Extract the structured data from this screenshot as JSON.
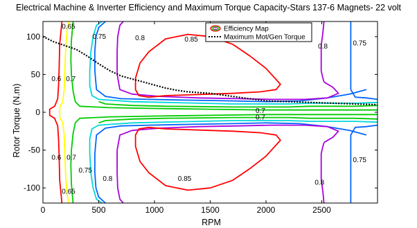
{
  "chart_data": {
    "type": "line",
    "title": "Electrical Machine  & Inverter Efficiency and Maximum Torque Capacity-Stars 137-6 Magnets- 22 volt",
    "xlabel": "RPM",
    "ylabel": "Rotor Torque (N.m)",
    "xlim": [
      0,
      3000
    ],
    "ylim": [
      -120,
      120
    ],
    "xticks": [
      0,
      500,
      1000,
      1500,
      2000,
      2500
    ],
    "yticks": [
      -100,
      -50,
      0,
      50,
      100
    ],
    "grid": false,
    "legend_position": "top-right",
    "legend": [
      {
        "label": "Efficiency Map",
        "marker": "contour-loop"
      },
      {
        "label": "Maximum Mot/Gen Torque",
        "style": "dotted",
        "color": "#000000"
      }
    ],
    "efficiency_contours": [
      {
        "level": "0.6",
        "color": "#ff0000",
        "points": [
          [
            170,
            120
          ],
          [
            160,
            105
          ],
          [
            150,
            90
          ],
          [
            148,
            75
          ],
          [
            145,
            55
          ],
          [
            140,
            35
          ],
          [
            132,
            18
          ],
          [
            105,
            8
          ],
          [
            60,
            4
          ],
          [
            60,
            -4
          ],
          [
            105,
            -8
          ],
          [
            132,
            -18
          ],
          [
            140,
            -35
          ],
          [
            145,
            -55
          ],
          [
            148,
            -75
          ],
          [
            150,
            -90
          ],
          [
            160,
            -105
          ],
          [
            170,
            -120
          ]
        ]
      },
      {
        "level": "0.65",
        "color": "#ffff00",
        "points": [
          [
            230,
            120
          ],
          [
            215,
            105
          ],
          [
            205,
            88
          ],
          [
            200,
            70
          ],
          [
            195,
            50
          ],
          [
            190,
            30
          ],
          [
            178,
            14
          ],
          [
            150,
            7
          ],
          [
            150,
            -7
          ],
          [
            178,
            -14
          ],
          [
            190,
            -30
          ],
          [
            195,
            -50
          ],
          [
            200,
            -70
          ],
          [
            205,
            -88
          ],
          [
            215,
            -105
          ],
          [
            230,
            -120
          ]
        ]
      },
      {
        "level": "0.7",
        "color": "#00cc00",
        "points": [
          [
            3000,
            3
          ],
          [
            2500,
            3
          ],
          [
            2000,
            3
          ],
          [
            1500,
            4
          ],
          [
            1000,
            5
          ],
          [
            600,
            6
          ],
          [
            330,
            8
          ],
          [
            290,
            14
          ],
          [
            270,
            28
          ],
          [
            255,
            50
          ],
          [
            250,
            70
          ],
          [
            255,
            95
          ],
          [
            270,
            120
          ]
        ]
      },
      {
        "level": "0.7",
        "color": "#00cc00",
        "points": [
          [
            3000,
            -3
          ],
          [
            2500,
            -3
          ],
          [
            2000,
            -3
          ],
          [
            1500,
            -4
          ],
          [
            1000,
            -5
          ],
          [
            600,
            -6
          ],
          [
            330,
            -8
          ],
          [
            290,
            -14
          ],
          [
            270,
            -28
          ],
          [
            255,
            -50
          ],
          [
            250,
            -70
          ],
          [
            255,
            -95
          ],
          [
            270,
            -120
          ]
        ]
      },
      {
        "level": "0.7",
        "color": "#00cc00",
        "points": [
          [
            3000,
            9
          ],
          [
            2800,
            8
          ],
          [
            2600,
            8
          ],
          [
            2400,
            8
          ],
          [
            2200,
            7
          ],
          [
            2000,
            7
          ],
          [
            1700,
            7
          ],
          [
            1400,
            7.5
          ],
          [
            1100,
            8
          ],
          [
            800,
            9
          ],
          [
            560,
            11
          ],
          [
            500,
            14
          ]
        ]
      },
      {
        "level": "0.7",
        "color": "#00cc00",
        "points": [
          [
            3000,
            -9
          ],
          [
            2800,
            -8
          ],
          [
            2600,
            -8
          ],
          [
            2400,
            -8
          ],
          [
            2200,
            -7
          ],
          [
            2000,
            -7
          ],
          [
            1700,
            -7
          ],
          [
            1400,
            -7.5
          ],
          [
            1100,
            -8
          ],
          [
            800,
            -9
          ],
          [
            560,
            -11
          ],
          [
            500,
            -14
          ]
        ]
      },
      {
        "level": "0.75",
        "color": "#00d7d7",
        "points": [
          [
            3000,
            13
          ],
          [
            2800,
            12
          ],
          [
            2600,
            12
          ],
          [
            2400,
            12
          ],
          [
            2200,
            11
          ],
          [
            2000,
            11
          ],
          [
            1700,
            11
          ],
          [
            1400,
            12
          ],
          [
            1100,
            13
          ],
          [
            800,
            14
          ],
          [
            600,
            16
          ],
          [
            500,
            17
          ],
          [
            440,
            22
          ],
          [
            420,
            35
          ],
          [
            420,
            55
          ],
          [
            430,
            80
          ],
          [
            450,
            100
          ],
          [
            480,
            115
          ],
          [
            530,
            120
          ]
        ]
      },
      {
        "level": "0.75",
        "color": "#00d7d7",
        "points": [
          [
            3000,
            -13
          ],
          [
            2800,
            -12
          ],
          [
            2600,
            -12
          ],
          [
            2400,
            -12
          ],
          [
            2200,
            -11
          ],
          [
            2000,
            -11
          ],
          [
            1700,
            -11
          ],
          [
            1400,
            -12
          ],
          [
            1100,
            -13
          ],
          [
            800,
            -14
          ],
          [
            600,
            -16
          ],
          [
            500,
            -17
          ],
          [
            440,
            -22
          ],
          [
            420,
            -35
          ],
          [
            420,
            -55
          ],
          [
            430,
            -80
          ],
          [
            450,
            -100
          ],
          [
            480,
            -115
          ],
          [
            530,
            -120
          ]
        ]
      },
      {
        "level": "0.8",
        "color": "#0066ff",
        "points": [
          [
            3000,
            17
          ],
          [
            2900,
            19
          ],
          [
            2800,
            20
          ],
          [
            2760,
            30
          ],
          [
            2760,
            60
          ],
          [
            2760,
            90
          ],
          [
            2760,
            120
          ]
        ]
      },
      {
        "level": "0.8",
        "color": "#0066ff",
        "points": [
          [
            3000,
            -17
          ],
          [
            2900,
            -19
          ],
          [
            2800,
            -20
          ],
          [
            2760,
            -30
          ],
          [
            2760,
            -60
          ],
          [
            2760,
            -90
          ],
          [
            2760,
            -120
          ]
        ]
      },
      {
        "level": "0.8",
        "color": "#0066ff",
        "points": [
          [
            2900,
            30
          ],
          [
            2750,
            24
          ],
          [
            2550,
            19
          ],
          [
            2300,
            15
          ],
          [
            2000,
            14
          ],
          [
            1700,
            15
          ],
          [
            1300,
            16
          ],
          [
            950,
            17
          ],
          [
            700,
            18
          ],
          [
            560,
            21
          ],
          [
            480,
            30
          ],
          [
            465,
            55
          ],
          [
            465,
            80
          ],
          [
            475,
            100
          ],
          [
            500,
            112
          ],
          [
            560,
            120
          ]
        ]
      },
      {
        "level": "0.8",
        "color": "#0066ff",
        "points": [
          [
            2900,
            -30
          ],
          [
            2750,
            -24
          ],
          [
            2550,
            -19
          ],
          [
            2300,
            -15
          ],
          [
            2000,
            -14
          ],
          [
            1700,
            -15
          ],
          [
            1300,
            -16
          ],
          [
            950,
            -17
          ],
          [
            700,
            -18
          ],
          [
            560,
            -21
          ],
          [
            480,
            -30
          ],
          [
            465,
            -55
          ],
          [
            465,
            -80
          ],
          [
            475,
            -100
          ],
          [
            500,
            -112
          ],
          [
            560,
            -120
          ]
        ]
      },
      {
        "level": "0.8",
        "color": "#aa00dd",
        "points": [
          [
            2520,
            120
          ],
          [
            2510,
            105
          ],
          [
            2495,
            88
          ],
          [
            2495,
            70
          ],
          [
            2495,
            55
          ],
          [
            2505,
            48
          ],
          [
            2520,
            40
          ]
        ]
      },
      {
        "level": "0.8",
        "color": "#aa00dd",
        "points": [
          [
            2520,
            -120
          ],
          [
            2510,
            -105
          ],
          [
            2495,
            -88
          ],
          [
            2495,
            -70
          ],
          [
            2495,
            -55
          ],
          [
            2505,
            -48
          ],
          [
            2520,
            -40
          ]
        ]
      },
      {
        "level": "0.85",
        "color": "#aa00dd",
        "points": [
          [
            2520,
            40
          ],
          [
            2600,
            33
          ],
          [
            2650,
            25
          ],
          [
            2550,
            19
          ],
          [
            2350,
            17
          ],
          [
            2050,
            17
          ],
          [
            1750,
            18
          ],
          [
            1400,
            19
          ],
          [
            1050,
            21
          ],
          [
            800,
            24
          ],
          [
            690,
            30
          ],
          [
            665,
            50
          ],
          [
            665,
            80
          ],
          [
            670,
            100
          ],
          [
            690,
            115
          ],
          [
            720,
            120
          ]
        ]
      },
      {
        "level": "0.85",
        "color": "#aa00dd",
        "points": [
          [
            2520,
            -40
          ],
          [
            2600,
            -33
          ],
          [
            2650,
            -25
          ],
          [
            2550,
            -19
          ],
          [
            2350,
            -17
          ],
          [
            2050,
            -17
          ],
          [
            1750,
            -18
          ],
          [
            1400,
            -19
          ],
          [
            1050,
            -21
          ],
          [
            800,
            -24
          ],
          [
            690,
            -30
          ],
          [
            665,
            -50
          ],
          [
            665,
            -80
          ],
          [
            670,
            -100
          ],
          [
            690,
            -115
          ],
          [
            720,
            -120
          ]
        ]
      },
      {
        "level": "0.85",
        "color": "#ff0000",
        "points": [
          [
            950,
            80
          ],
          [
            1100,
            97
          ],
          [
            1300,
            103
          ],
          [
            1500,
            100
          ],
          [
            1700,
            90
          ],
          [
            1850,
            75
          ],
          [
            2000,
            58
          ],
          [
            2080,
            45
          ],
          [
            2130,
            37
          ],
          [
            2090,
            30
          ],
          [
            1950,
            27
          ],
          [
            1700,
            25
          ],
          [
            1500,
            24
          ],
          [
            1300,
            23
          ],
          [
            1100,
            22
          ],
          [
            950,
            20
          ],
          [
            860,
            22
          ],
          [
            830,
            30
          ],
          [
            830,
            45
          ],
          [
            870,
            65
          ],
          [
            950,
            80
          ]
        ]
      },
      {
        "level": "0.85",
        "color": "#ff0000",
        "points": [
          [
            950,
            -80
          ],
          [
            1100,
            -97
          ],
          [
            1300,
            -103
          ],
          [
            1500,
            -100
          ],
          [
            1700,
            -90
          ],
          [
            1850,
            -75
          ],
          [
            2000,
            -58
          ],
          [
            2080,
            -45
          ],
          [
            2130,
            -37
          ],
          [
            2090,
            -30
          ],
          [
            1950,
            -27
          ],
          [
            1700,
            -25
          ],
          [
            1500,
            -24
          ],
          [
            1300,
            -23
          ],
          [
            1100,
            -22
          ],
          [
            950,
            -20
          ],
          [
            860,
            -22
          ],
          [
            830,
            -30
          ],
          [
            830,
            -45
          ],
          [
            870,
            -65
          ],
          [
            950,
            -80
          ]
        ]
      }
    ],
    "contour_labels": [
      {
        "text": "0.65",
        "x": 230,
        "y": 113
      },
      {
        "text": "0.75",
        "x": 505,
        "y": 100
      },
      {
        "text": "0.8",
        "x": 870,
        "y": 98
      },
      {
        "text": "0.85",
        "x": 1330,
        "y": 96
      },
      {
        "text": "0.8",
        "x": 2510,
        "y": 87
      },
      {
        "text": "0.75",
        "x": 2840,
        "y": 91
      },
      {
        "text": "0.6",
        "x": 120,
        "y": 44
      },
      {
        "text": "0.7",
        "x": 250,
        "y": 44
      },
      {
        "text": "0.7",
        "x": 1950,
        "y": 2
      },
      {
        "text": "0.7",
        "x": 1950,
        "y": -7
      },
      {
        "text": "0.6",
        "x": 120,
        "y": -60
      },
      {
        "text": "0.7",
        "x": 255,
        "y": -60
      },
      {
        "text": "0.75",
        "x": 380,
        "y": -77
      },
      {
        "text": "0.8",
        "x": 580,
        "y": -88
      },
      {
        "text": "0.85",
        "x": 1270,
        "y": -88
      },
      {
        "text": "0.75",
        "x": 2840,
        "y": -63
      },
      {
        "text": "0.8",
        "x": 2480,
        "y": -93
      },
      {
        "text": "0.65",
        "x": 230,
        "y": -105
      }
    ],
    "max_torque_curve": {
      "name": "Maximum Mot/Gen Torque",
      "color": "#000000",
      "x": [
        0,
        100,
        200,
        300,
        400,
        500,
        600,
        700,
        800,
        900,
        1000,
        1100,
        1200,
        1300,
        1400,
        1500,
        1600,
        1700,
        1800,
        1900,
        2000,
        2200,
        2400,
        2600,
        2800,
        3000
      ],
      "y": [
        100,
        93,
        88,
        83,
        74,
        64,
        55,
        48,
        44,
        40,
        36,
        32,
        29,
        27,
        26,
        25,
        23,
        21,
        19,
        17,
        15,
        14,
        13,
        12,
        11,
        10
      ]
    }
  }
}
